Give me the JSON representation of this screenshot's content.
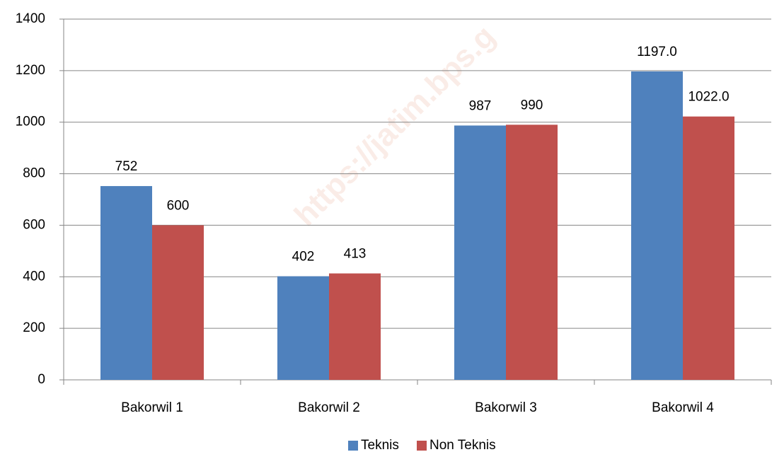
{
  "chart_data": {
    "type": "bar",
    "watermark": "https://jatim.bps.g",
    "categories": [
      "Bakorwil 1",
      "Bakorwil 2",
      "Bakorwil 3",
      "Bakorwil 4"
    ],
    "series": [
      {
        "name": "Teknis",
        "color": "#4f81bd",
        "values": [
          752,
          402,
          987,
          1197
        ],
        "value_labels": [
          "752",
          "402",
          "987",
          "1197.0"
        ]
      },
      {
        "name": "Non Teknis",
        "color": "#c0504d",
        "values": [
          600,
          413,
          990,
          1022
        ],
        "value_labels": [
          "600",
          "413",
          "990",
          "1022.0"
        ]
      }
    ],
    "ylim": [
      0,
      1400
    ],
    "yticks": [
      0,
      200,
      400,
      600,
      800,
      1000,
      1200,
      1400
    ],
    "grid": true,
    "legend": "bottom"
  }
}
